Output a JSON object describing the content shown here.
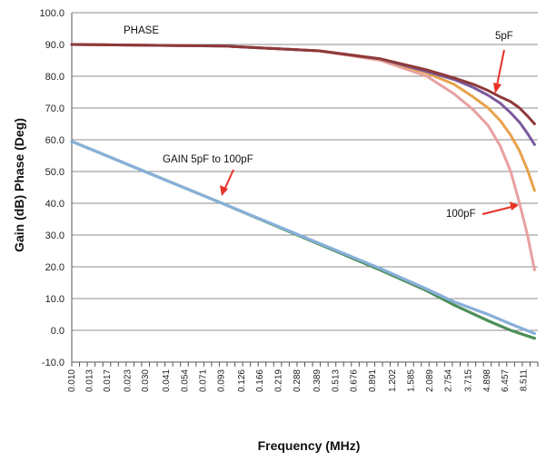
{
  "chart_data": {
    "type": "line",
    "xlabel": "Frequency (MHz)",
    "ylabel": "Gain (dB) Phase (Deg)",
    "ylim": [
      -10,
      100
    ],
    "y_ticks": [
      "100.0",
      "90.0",
      "80.0",
      "70.0",
      "60.0",
      "50.0",
      "40.0",
      "30.0",
      "20.0",
      "10.0",
      "0.0",
      "-10.0"
    ],
    "x_scale": "log",
    "x_tick_labels": [
      "0.010",
      "0.013",
      "0.017",
      "0.023",
      "0.030",
      "0.041",
      "0.054",
      "0.071",
      "0.093",
      "0.126",
      "0.166",
      "0.219",
      "0.288",
      "0.389",
      "0.513",
      "0.676",
      "0.891",
      "1.202",
      "1.585",
      "2.089",
      "2.754",
      "3.715",
      "4.898",
      "6.457",
      "8.511"
    ],
    "grid": "horizontal",
    "annotations": {
      "phase": "PHASE",
      "five_pf": "5pF",
      "gain": "GAIN 5pF to 100pF",
      "hundred_pf": "100pF"
    },
    "series": [
      {
        "kind": "phase",
        "color": "#E8A0A0",
        "x": [
          0.01,
          0.1,
          0.4,
          1.0,
          2.0,
          3.0,
          4.0,
          5.0,
          6.0,
          7.0,
          8.0,
          9.0,
          10.0
        ],
        "y": [
          90.0,
          89.5,
          88.0,
          85.0,
          80.0,
          74.5,
          69.5,
          64.5,
          58.0,
          50.0,
          40.0,
          30.0,
          19.0
        ]
      },
      {
        "kind": "phase",
        "color": "#E8A24A",
        "x": [
          0.01,
          0.1,
          0.4,
          1.0,
          2.0,
          3.0,
          4.0,
          5.0,
          6.0,
          7.0,
          8.0,
          9.0,
          10.0
        ],
        "y": [
          90.0,
          89.5,
          88.0,
          85.5,
          81.0,
          77.5,
          73.5,
          70.0,
          66.0,
          61.5,
          56.5,
          50.5,
          44.0
        ]
      },
      {
        "kind": "phase",
        "color": "#7A5A9E",
        "x": [
          0.01,
          0.1,
          0.4,
          1.0,
          2.0,
          3.0,
          4.0,
          5.0,
          6.0,
          7.0,
          8.0,
          9.0,
          10.0
        ],
        "y": [
          90.0,
          89.5,
          88.0,
          85.5,
          81.5,
          79.0,
          76.5,
          74.0,
          71.5,
          68.5,
          65.5,
          62.0,
          58.5
        ]
      },
      {
        "kind": "phase",
        "color": "#8E3A3A",
        "x": [
          0.01,
          0.1,
          0.4,
          1.0,
          2.0,
          3.0,
          4.0,
          5.0,
          6.0,
          7.0,
          8.0,
          9.0,
          10.0
        ],
        "y": [
          90.0,
          89.5,
          88.0,
          85.5,
          82.0,
          79.5,
          77.5,
          75.5,
          73.5,
          72.0,
          70.0,
          67.5,
          65.0
        ]
      },
      {
        "kind": "gain",
        "color": "#4E8F5A",
        "x": [
          0.01,
          0.1,
          1.0,
          2.0,
          3.0,
          5.0,
          7.0,
          10.0
        ],
        "y": [
          59.5,
          39.5,
          19.0,
          12.5,
          8.0,
          3.0,
          0.0,
          -2.5
        ]
      },
      {
        "kind": "gain",
        "color": "#88B0DA",
        "x": [
          0.01,
          0.1,
          1.0,
          2.0,
          3.0,
          5.0,
          7.0,
          10.0
        ],
        "y": [
          59.5,
          39.5,
          19.5,
          13.0,
          9.0,
          5.0,
          2.0,
          -1.0
        ]
      }
    ]
  }
}
